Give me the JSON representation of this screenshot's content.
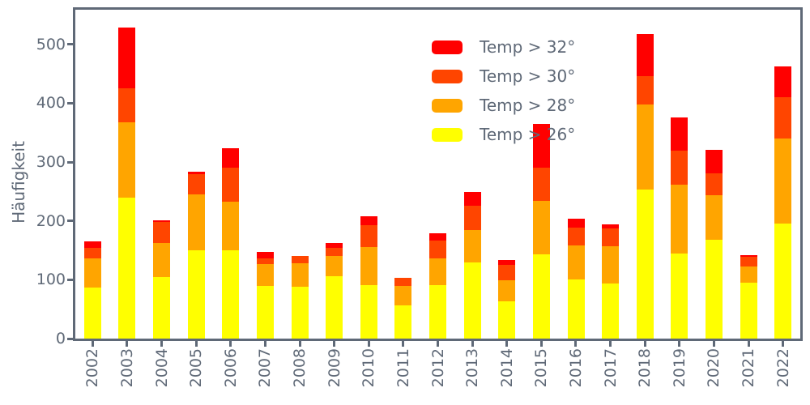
{
  "figure": {
    "ylabel": "Häufigkeit"
  },
  "colors": {
    "temp_gt_32": "#ff0000",
    "temp_gt_30": "#ff4500",
    "temp_gt_28": "#ffa500",
    "temp_gt_26": "#ffff00",
    "axis_and_text": "#5f6977"
  },
  "legend": [
    {
      "label": "Temp > 32°",
      "color": "#ff0000"
    },
    {
      "label": "Temp > 30°",
      "color": "#ff4500"
    },
    {
      "label": "Temp > 28°",
      "color": "#ffa500"
    },
    {
      "label": "Temp > 26°",
      "color": "#ffff00"
    }
  ],
  "chart_data": {
    "type": "bar",
    "stacked": true,
    "title": "",
    "xlabel": "",
    "ylabel": "Häufigkeit",
    "categories": [
      "2002",
      "2003",
      "2004",
      "2005",
      "2006",
      "2007",
      "2008",
      "2009",
      "2010",
      "2011",
      "2012",
      "2013",
      "2014",
      "2015",
      "2016",
      "2017",
      "2018",
      "2019",
      "2020",
      "2021",
      "2022"
    ],
    "series": [
      {
        "name": "Temp > 26°",
        "color": "#ffff00",
        "values": [
          87,
          240,
          105,
          150,
          150,
          90,
          88,
          106,
          91,
          57,
          91,
          130,
          64,
          143,
          100,
          93,
          253,
          144,
          168,
          95,
          196
        ]
      },
      {
        "name": "Temp > 28°",
        "color": "#ffa500",
        "values": [
          49,
          127,
          57,
          95,
          83,
          37,
          40,
          34,
          65,
          33,
          46,
          55,
          35,
          91,
          58,
          64,
          145,
          118,
          76,
          27,
          144
        ]
      },
      {
        "name": "Temp > 30°",
        "color": "#ff4500",
        "values": [
          18,
          59,
          36,
          35,
          57,
          9,
          12,
          14,
          37,
          13,
          30,
          41,
          26,
          56,
          30,
          30,
          48,
          58,
          37,
          17,
          71
        ]
      },
      {
        "name": "Temp > 32°",
        "color": "#ff0000",
        "values": [
          11,
          103,
          3,
          4,
          33,
          12,
          0,
          8,
          15,
          0,
          12,
          23,
          8,
          75,
          16,
          7,
          72,
          56,
          40,
          3,
          52
        ]
      }
    ],
    "totals": [
      165,
      529,
      201,
      284,
      323,
      148,
      140,
      162,
      208,
      103,
      179,
      249,
      133,
      365,
      204,
      194,
      518,
      376,
      321,
      142,
      463
    ],
    "y_ticks": [
      0,
      100,
      200,
      300,
      400,
      500
    ],
    "ylim": [
      0,
      559
    ],
    "grid": false,
    "legend_position": "upper-center-inside"
  }
}
